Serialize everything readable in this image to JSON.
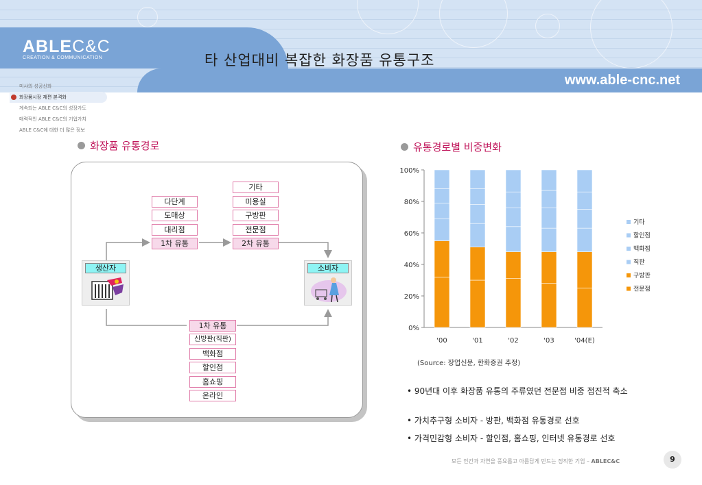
{
  "header": {
    "logo_main": "ABLE",
    "logo_main_tail": "C&C",
    "logo_sub": "CREATION & COMMUNICATION",
    "title": "타 산업대비 복잡한 화장품 유통구조",
    "url": "www.able-cnc.net"
  },
  "sidebar": {
    "items": [
      {
        "label": "미샤의 성공신화"
      },
      {
        "label": "화장품시장 재편 본격화"
      },
      {
        "label": "계속되는 ABLE C&C의 성장가도"
      },
      {
        "label": "매력적인 ABLE C&C의 기업가치"
      },
      {
        "label": "ABLE C&C에 대한 더 많은 정보"
      }
    ]
  },
  "left_section": {
    "title": "화장품 유통경로",
    "producer": "생산자",
    "consumer": "소비자",
    "upper_first": "1차 유통",
    "upper_first_items": [
      "다단계",
      "도매상",
      "대리점"
    ],
    "upper_second": "2차 유통",
    "upper_second_items": [
      "기타",
      "미용실",
      "구방판",
      "전문점"
    ],
    "lower_first": "1차 유통",
    "lower_items": [
      "신방판(직판)",
      "백화점",
      "할인점",
      "홈쇼핑",
      "온라인"
    ]
  },
  "right_section": {
    "title": "유통경로별 비중변화",
    "source": "(Source: 장업신문, 한화증권 추정)",
    "notes": [
      "• 90년대 이후 화장품 유통의 주류였던 전문점 비중 점진적 축소",
      "• 가치추구형 소비자 - 방판, 백화점 유통경로 선호",
      "• 가격민감형 소비자 - 할인점, 홈쇼핑, 인터넷 유통경로 선호"
    ]
  },
  "footer": {
    "text": "모든 인간과 자연을 풍요롭고 아름답게 만드는 정직한 기업 – ",
    "brand": "ABLEC&C",
    "page": "9"
  },
  "colors": {
    "accent_blue": "#7aa4d6",
    "orange": "#f5960a",
    "light_blue": "#a9cdf4",
    "magenta": "#c0145a"
  },
  "chart_data": {
    "type": "bar",
    "stacked": true,
    "categories": [
      "'00",
      "'01",
      "'02",
      "'03",
      "'04(E)"
    ],
    "ylim": [
      0,
      100
    ],
    "yticks": [
      "0%",
      "20%",
      "40%",
      "60%",
      "80%",
      "100%"
    ],
    "legend_position": "right",
    "series": [
      {
        "name": "전문점",
        "color": "#f5960a",
        "values": [
          32,
          30,
          31,
          28,
          25
        ]
      },
      {
        "name": "구방판",
        "color": "#f5960a",
        "values": [
          23,
          21,
          17,
          20,
          23
        ]
      },
      {
        "name": "직판",
        "color": "#a9cdf4",
        "values": [
          14,
          15,
          16,
          15,
          15
        ]
      },
      {
        "name": "백화점",
        "color": "#a9cdf4",
        "values": [
          10,
          12,
          12,
          13,
          12
        ]
      },
      {
        "name": "할인점",
        "color": "#a9cdf4",
        "values": [
          9,
          10,
          10,
          11,
          11
        ]
      },
      {
        "name": "기타",
        "color": "#a9cdf4",
        "values": [
          12,
          12,
          14,
          13,
          14
        ]
      }
    ]
  }
}
